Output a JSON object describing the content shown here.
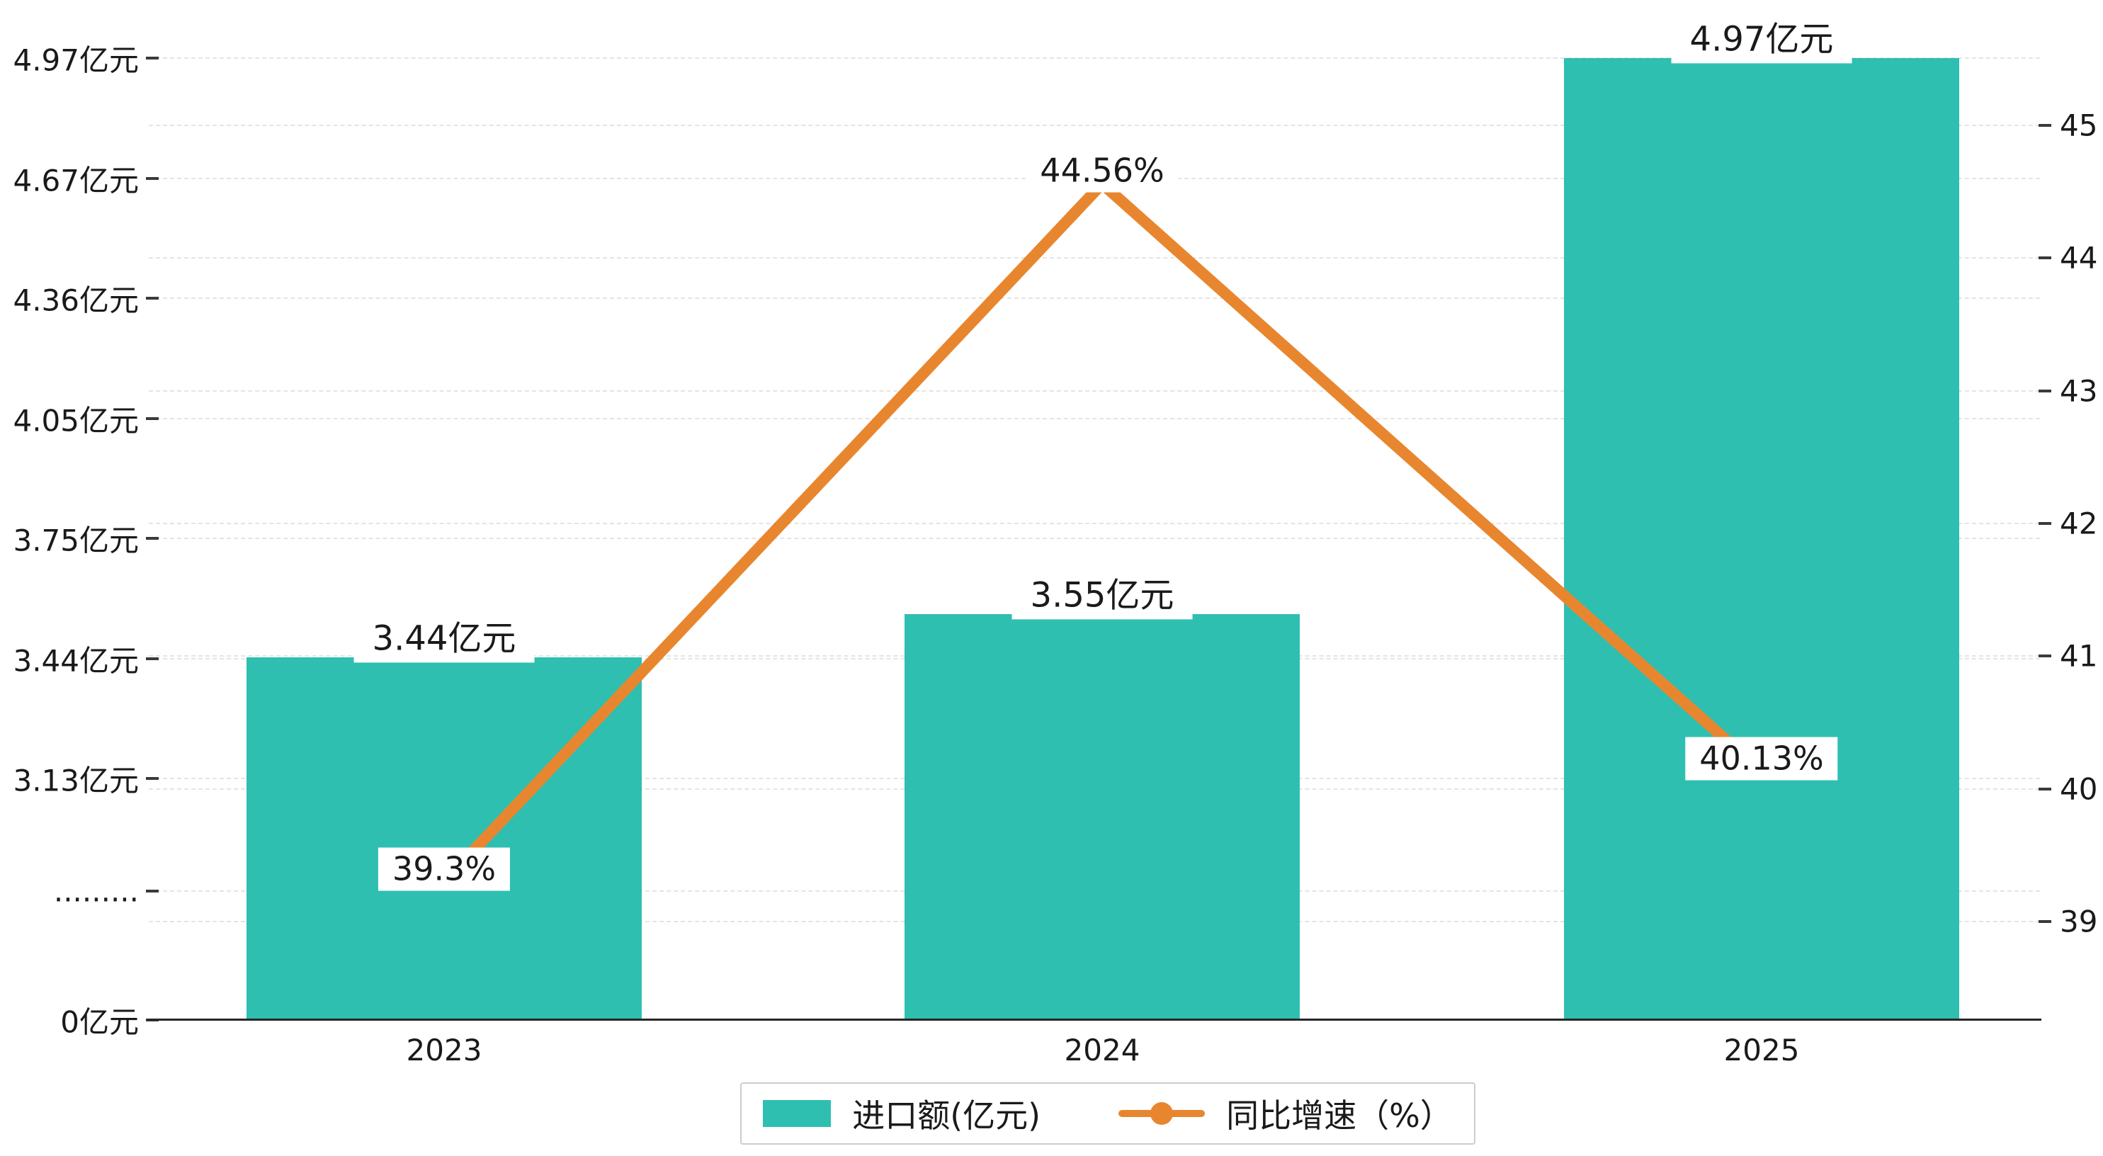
{
  "chart_data": {
    "type": "bar+line",
    "categories": [
      "2023",
      "2024",
      "2025"
    ],
    "series": [
      {
        "name": "进口额(亿元)",
        "type": "bar",
        "axis": "left",
        "color": "#2ebfb1",
        "values": [
          3.44,
          3.55,
          4.97
        ],
        "labels": [
          "3.44亿元",
          "3.55亿元",
          "4.97亿元"
        ]
      },
      {
        "name": "同比增速（%）",
        "type": "line",
        "axis": "right",
        "color": "#e8862f",
        "values": [
          39.3,
          44.56,
          40.13
        ],
        "labels": [
          "39.3%",
          "44.56%",
          "40.13%"
        ]
      }
    ],
    "left_axis": {
      "unit": "亿元",
      "tick_labels": [
        "4.97亿元",
        "4.67亿元",
        "4.36亿元",
        "4.05亿元",
        "3.75亿元",
        "3.44亿元",
        "3.13亿元",
        ".........",
        "0亿元"
      ],
      "axis_break": true,
      "range": [
        3.13,
        4.97
      ],
      "baseline_value": 0
    },
    "right_axis": {
      "unit": "%",
      "tick_values": [
        45,
        44,
        43,
        42,
        41,
        40,
        39
      ],
      "range": [
        39,
        45.6
      ]
    },
    "legend": {
      "items": [
        {
          "label": "进口额(亿元)",
          "marker": "bar"
        },
        {
          "label": "同比增速（%）",
          "marker": "line-dot"
        }
      ],
      "position": "bottom-center"
    },
    "grid": "dashed-horizontal",
    "title": ""
  }
}
